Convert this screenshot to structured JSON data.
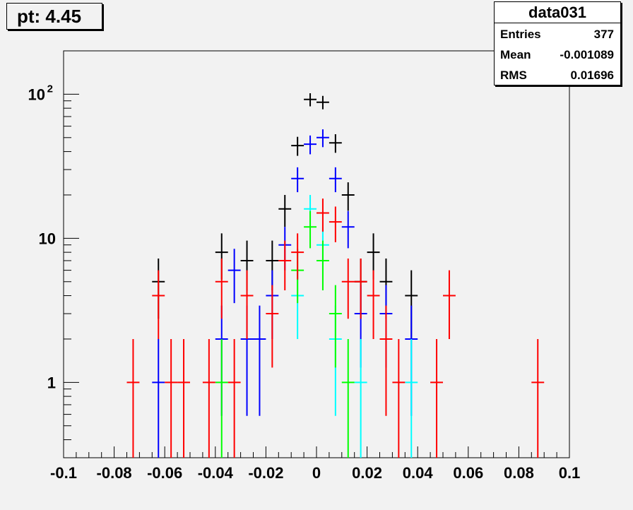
{
  "pad_title": "pt: 4.45",
  "stats": {
    "title": "data031",
    "rows": [
      {
        "key": "Entries",
        "value": "377"
      },
      {
        "key": "Mean",
        "value": "-0.001089"
      },
      {
        "key": "RMS",
        "value": "0.01696"
      }
    ]
  },
  "chart_data": {
    "type": "scatter",
    "style": "histogram error bars (ROOT)",
    "x_log": false,
    "y_log": true,
    "xlim": [
      -0.1,
      0.1
    ],
    "ylim": [
      0.3,
      200
    ],
    "x_ticks": [
      "-0.1",
      "-0.08",
      "-0.06",
      "-0.04",
      "-0.02",
      "0",
      "0.02",
      "0.04",
      "0.06",
      "0.08",
      "0.1"
    ],
    "y_ticks": [
      {
        "value": 1,
        "label": "1"
      },
      {
        "value": 10,
        "label": "10"
      },
      {
        "value": 100,
        "label": "10",
        "sup": "2"
      }
    ],
    "bin_half_width": 0.0025,
    "series": [
      {
        "color": "#000000",
        "x": [
          -0.0625,
          -0.0375,
          -0.0275,
          -0.0175,
          -0.0125,
          -0.0075,
          -0.0025,
          0.0025,
          0.0075,
          0.0125,
          0.0175,
          0.0225,
          0.0275,
          0.0375
        ],
        "y": [
          5,
          8,
          7,
          7,
          16,
          44,
          92,
          88,
          46,
          20,
          5,
          8,
          5,
          4
        ]
      },
      {
        "color": "#0000ff",
        "x": [
          -0.0625,
          -0.0375,
          -0.0325,
          -0.0275,
          -0.0225,
          -0.0175,
          -0.0125,
          -0.0075,
          -0.0025,
          0.0025,
          0.0075,
          0.0125,
          0.0175,
          0.0275,
          0.0375
        ],
        "y": [
          1,
          2,
          6,
          2,
          2,
          4,
          9,
          26,
          45,
          50,
          26,
          12,
          3,
          3,
          2
        ]
      },
      {
        "color": "#00ffff",
        "x": [
          -0.0075,
          -0.0025,
          0.0025,
          0.0075,
          0.0175,
          0.0375
        ],
        "y": [
          4,
          16,
          9,
          2,
          1,
          1
        ]
      },
      {
        "color": "#00ff00",
        "x": [
          -0.0375,
          -0.0075,
          -0.0025,
          0.0025,
          0.0075,
          0.0125
        ],
        "y": [
          1,
          6,
          12,
          7,
          3,
          1
        ]
      },
      {
        "color": "#ff0000",
        "x": [
          -0.0725,
          -0.0625,
          -0.0575,
          -0.0525,
          -0.0425,
          -0.0375,
          -0.0325,
          -0.0275,
          -0.0175,
          -0.0125,
          -0.0075,
          0.0025,
          0.0075,
          0.0125,
          0.0175,
          0.0225,
          0.0275,
          0.0325,
          0.0475,
          0.0525,
          0.0875
        ],
        "y": [
          1,
          4,
          1,
          1,
          1,
          5,
          1,
          4,
          3,
          7,
          8,
          15,
          13,
          5,
          5,
          4,
          2,
          1,
          1,
          4,
          1
        ]
      }
    ]
  }
}
